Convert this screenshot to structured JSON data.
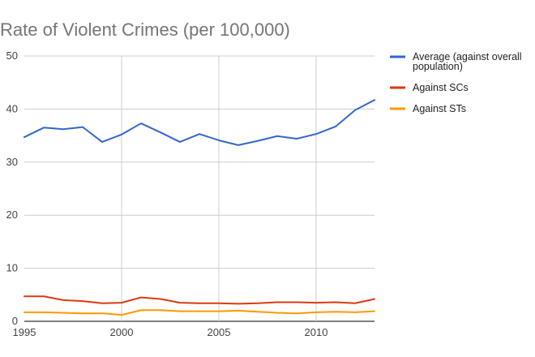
{
  "chart_data": {
    "type": "line",
    "title": "Rate of Violent Crimes (per 100,000)",
    "xlabel": "",
    "ylabel": "",
    "x": [
      1995,
      1996,
      1997,
      1998,
      1999,
      2000,
      2001,
      2002,
      2003,
      2004,
      2005,
      2006,
      2007,
      2008,
      2009,
      2010,
      2011,
      2012,
      2013
    ],
    "xlim": [
      1995,
      2013
    ],
    "ylim": [
      0,
      50
    ],
    "x_ticks": [
      "1995",
      "2000",
      "2005",
      "2010"
    ],
    "y_ticks": [
      "0",
      "10",
      "20",
      "30",
      "40",
      "50"
    ],
    "grid": true,
    "legend_position": "right",
    "legend_labels": [
      [
        "Average (against overall",
        "population)"
      ],
      [
        "Against SCs"
      ],
      [
        "Against STs"
      ]
    ],
    "series": [
      {
        "name": "Average (against overall population)",
        "color": "#3366cc",
        "values": [
          34.7,
          36.5,
          36.2,
          36.6,
          33.8,
          35.2,
          37.3,
          35.6,
          33.8,
          35.3,
          34.1,
          33.2,
          34.0,
          34.9,
          34.4,
          35.3,
          36.7,
          39.8,
          41.7
        ]
      },
      {
        "name": "Against SCs",
        "color": "#dc3912",
        "values": [
          4.7,
          4.7,
          4.0,
          3.8,
          3.4,
          3.5,
          4.5,
          4.2,
          3.5,
          3.4,
          3.4,
          3.3,
          3.4,
          3.6,
          3.6,
          3.5,
          3.6,
          3.4,
          4.2
        ]
      },
      {
        "name": "Against STs",
        "color": "#ff9900",
        "values": [
          1.7,
          1.7,
          1.6,
          1.5,
          1.5,
          1.2,
          2.1,
          2.1,
          1.9,
          1.9,
          1.9,
          2.0,
          1.8,
          1.6,
          1.5,
          1.7,
          1.8,
          1.7,
          1.9
        ]
      }
    ]
  }
}
